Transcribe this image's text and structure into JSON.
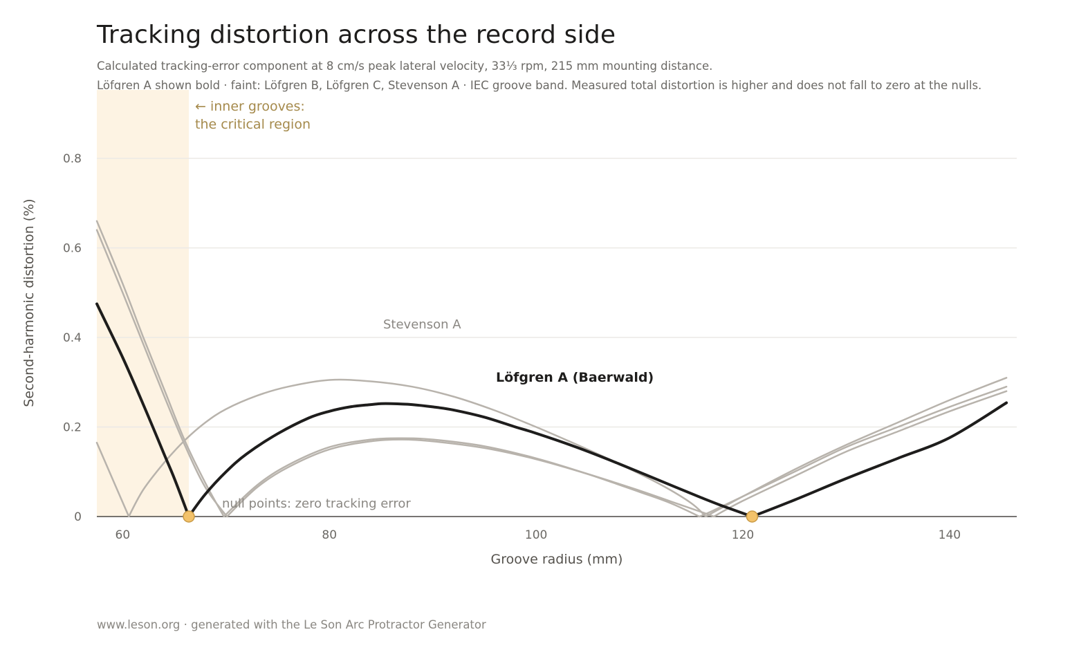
{
  "header": {
    "title": "Tracking distortion across the record side",
    "subtitle_line1": "Calculated tracking-error component at 8 cm/s peak lateral velocity, 33⅓ rpm, 215 mm mounting distance.",
    "subtitle_line2": "Löfgren A shown bold · faint: Löfgren B, Löfgren C, Stevenson A · IEC groove band. Measured total distortion is higher and does not fall to zero at the nulls."
  },
  "footer": {
    "text": "www.leson.org · generated with the Le Son Arc Protractor Generator"
  },
  "chart_data": {
    "type": "line",
    "xlabel": "Groove radius (mm)",
    "ylabel": "Second-harmonic distortion (%)",
    "xlim": [
      57.5,
      146.5
    ],
    "ylim": [
      0,
      0.8
    ],
    "x_ticks": [
      60,
      80,
      100,
      120,
      140
    ],
    "y_ticks": [
      0,
      0.2,
      0.4,
      0.6,
      0.8
    ],
    "y_tick_labels": [
      "0",
      "0.2",
      "0.4",
      "0.6",
      "0.8"
    ],
    "grid": true,
    "shaded_band": {
      "x_from": 57.5,
      "x_to": 66.4,
      "color": "#fdf3e3"
    },
    "annotations": {
      "band_line1": "← inner grooves:",
      "band_line2": "the critical region",
      "nulls": "null points: zero tracking error"
    },
    "series": [
      {
        "name": "Löfgren A (Baerwald)",
        "emphasis": "bold",
        "color": "#1e1d1c",
        "x": [
          57.5,
          60,
          62,
          64,
          65,
          66.4,
          68,
          70,
          72,
          75,
          78,
          80,
          82,
          84,
          85,
          86,
          88,
          90,
          92,
          95,
          98,
          100,
          104,
          108,
          112,
          116,
          118,
          120.9,
          125,
          130,
          135,
          140,
          145.5
        ],
        "y": [
          0.475,
          0.355,
          0.25,
          0.14,
          0.085,
          0,
          0.05,
          0.1,
          0.14,
          0.185,
          0.22,
          0.235,
          0.245,
          0.25,
          0.252,
          0.252,
          0.25,
          0.245,
          0.238,
          0.222,
          0.2,
          0.186,
          0.154,
          0.118,
          0.08,
          0.042,
          0.024,
          0,
          0.037,
          0.085,
          0.13,
          0.176,
          0.254
        ]
      },
      {
        "name": "Löfgren B",
        "emphasis": "faint",
        "color": "#b8b3ac",
        "x": [
          57.5,
          60,
          62,
          64,
          66,
          68,
          70.1,
          73,
          76,
          80,
          84,
          87,
          90,
          95,
          100,
          105,
          110,
          113,
          116,
          117.2,
          120,
          125,
          130,
          135,
          140,
          145.5
        ],
        "y": [
          0.64,
          0.5,
          0.385,
          0.27,
          0.16,
          0.065,
          0,
          0.065,
          0.11,
          0.15,
          0.168,
          0.172,
          0.168,
          0.153,
          0.128,
          0.095,
          0.058,
          0.034,
          0.01,
          0,
          0.035,
          0.09,
          0.145,
          0.19,
          0.235,
          0.28
        ]
      },
      {
        "name": "Löfgren C",
        "emphasis": "faint",
        "color": "#b8b3ac",
        "x": [
          57.5,
          60,
          62,
          64,
          66,
          68,
          69.8,
          73,
          76,
          80,
          84,
          87,
          90,
          95,
          100,
          105,
          110,
          113,
          115.8,
          117,
          120,
          125,
          130,
          135,
          140,
          145.5
        ],
        "y": [
          0.66,
          0.52,
          0.4,
          0.285,
          0.17,
          0.075,
          0,
          0.07,
          0.115,
          0.155,
          0.172,
          0.175,
          0.172,
          0.157,
          0.13,
          0.095,
          0.055,
          0.03,
          0,
          0.012,
          0.045,
          0.1,
          0.155,
          0.2,
          0.245,
          0.29
        ]
      },
      {
        "name": "Stevenson A",
        "emphasis": "faint",
        "color": "#b8b3ac",
        "x": [
          57.5,
          59,
          60.6,
          62,
          64,
          66,
          68,
          70,
          73,
          76,
          80,
          84,
          88,
          92,
          96,
          100,
          104,
          108,
          112,
          115,
          116.4,
          118,
          120,
          125,
          130,
          135,
          140,
          145.5
        ],
        "y": [
          0.165,
          0.085,
          0,
          0.06,
          0.12,
          0.17,
          0.21,
          0.24,
          0.27,
          0.29,
          0.305,
          0.302,
          0.29,
          0.268,
          0.237,
          0.2,
          0.16,
          0.118,
          0.072,
          0.03,
          0,
          0.02,
          0.045,
          0.105,
          0.16,
          0.21,
          0.26,
          0.31
        ]
      }
    ],
    "series_labels": {
      "bold": "Löfgren A (Baerwald)",
      "faint": "Stevenson A"
    },
    "null_points": [
      {
        "x": 66.4,
        "y": 0
      },
      {
        "x": 120.9,
        "y": 0
      }
    ],
    "null_marker_color": "#f3c26a"
  }
}
